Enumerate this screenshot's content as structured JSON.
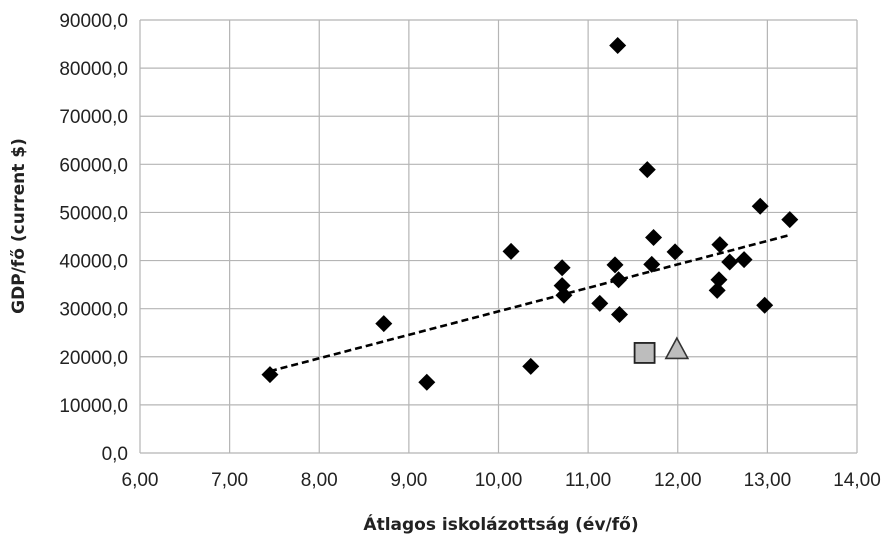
{
  "chart_data": {
    "type": "scatter",
    "title": "",
    "xlabel": "Átlagos iskolázottság (év/fő)",
    "ylabel": "GDP/fő (current $)",
    "xlim": [
      6,
      14
    ],
    "ylim": [
      0,
      90000
    ],
    "x_ticks": [
      "6,00",
      "7,00",
      "8,00",
      "9,00",
      "10,00",
      "11,00",
      "12,00",
      "13,00",
      "14,00"
    ],
    "y_ticks": [
      "0,0",
      "10000,0",
      "20000,0",
      "30000,0",
      "40000,0",
      "50000,0",
      "60000,0",
      "70000,0",
      "80000,0",
      "90000,0"
    ],
    "grid": true,
    "legend": "none",
    "colors": {
      "marker": "#000000",
      "highlight_fill": "#bdbdbd",
      "grid": "#b5b5b5",
      "trend": "#000000"
    },
    "series": [
      {
        "marker": "diamond",
        "points": [
          {
            "x": 7.45,
            "y": 16300
          },
          {
            "x": 8.72,
            "y": 26900
          },
          {
            "x": 9.2,
            "y": 14700
          },
          {
            "x": 10.14,
            "y": 41900
          },
          {
            "x": 10.36,
            "y": 18000
          },
          {
            "x": 10.71,
            "y": 38500
          },
          {
            "x": 10.71,
            "y": 34800
          },
          {
            "x": 10.73,
            "y": 32800
          },
          {
            "x": 11.13,
            "y": 31100
          },
          {
            "x": 11.3,
            "y": 39100
          },
          {
            "x": 11.34,
            "y": 36000
          },
          {
            "x": 11.35,
            "y": 28800
          },
          {
            "x": 11.33,
            "y": 84700
          },
          {
            "x": 11.66,
            "y": 58900
          },
          {
            "x": 11.71,
            "y": 39200
          },
          {
            "x": 11.73,
            "y": 44800
          },
          {
            "x": 11.97,
            "y": 41800
          },
          {
            "x": 12.44,
            "y": 33800
          },
          {
            "x": 12.46,
            "y": 36000
          },
          {
            "x": 12.47,
            "y": 43300
          },
          {
            "x": 12.58,
            "y": 39700
          },
          {
            "x": 12.74,
            "y": 40200
          },
          {
            "x": 12.92,
            "y": 51300
          },
          {
            "x": 12.97,
            "y": 30700
          },
          {
            "x": 13.25,
            "y": 48500
          }
        ]
      },
      {
        "marker": "square",
        "points": [
          {
            "x": 11.63,
            "y": 20800
          }
        ]
      },
      {
        "marker": "triangle",
        "points": [
          {
            "x": 11.99,
            "y": 21600
          }
        ]
      }
    ],
    "trendline": {
      "style": "dashed",
      "x1": 7.45,
      "y1": 17000,
      "x2": 13.25,
      "y2": 45300
    }
  }
}
